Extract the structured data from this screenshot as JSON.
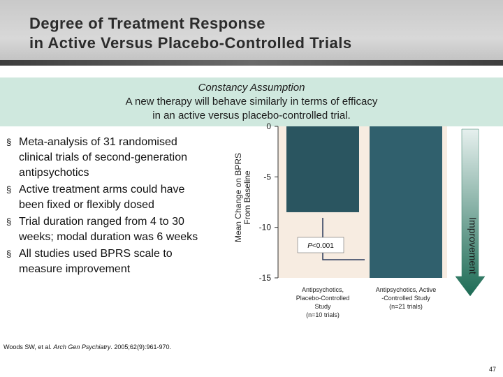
{
  "header": {
    "title": "Degree of Treatment Response\nin Active Versus Placebo-Controlled Trials"
  },
  "assumption": {
    "title": "Constancy Assumption",
    "line1": "A new therapy will behave similarly in terms of efficacy",
    "line2": "in an active versus placebo-controlled trial."
  },
  "bullets": [
    "Meta-analysis of 31 randomised clinical trials of second-generation antipsychotics",
    "Active treatment arms could have been fixed or flexibly dosed",
    "Trial duration ranged from 4 to 30 weeks; modal duration was 6 weeks",
    "All studies used BPRS scale to measure improvement"
  ],
  "bullet_marker": "§",
  "footnote": {
    "prefix": "Woods SW, et al. ",
    "journal": "Arch Gen Psychiatry",
    "suffix": ". 2005;62(9):961-970."
  },
  "page_number": "47",
  "colors": {
    "bar1": "#2a5560",
    "bar2": "#30606d",
    "plot_bg": "#f7ece1",
    "arrow_top": "#e6f0ee",
    "arrow_bottom": "#1d6b55"
  },
  "chart_data": {
    "type": "bar",
    "categories": [
      [
        "Antipsychotics,",
        "Placebo-Controlled",
        "Study",
        "(n=10 trials)"
      ],
      [
        "Antipsychotics, Active",
        "-Controlled Study",
        "(n=21 trials)"
      ]
    ],
    "values": [
      -8.5,
      -15
    ],
    "ylabel": [
      "Mean Change on BPRS",
      "From Baseline"
    ],
    "ylim": [
      -15,
      0
    ],
    "yticks": [
      0,
      -5,
      -10,
      -15
    ],
    "ytick_labels": [
      "0",
      "-5",
      "-10",
      "-15"
    ],
    "annotation": {
      "prefix": "P",
      "text": "<0.001"
    },
    "arrow_label": "Improvement",
    "grid": false
  }
}
